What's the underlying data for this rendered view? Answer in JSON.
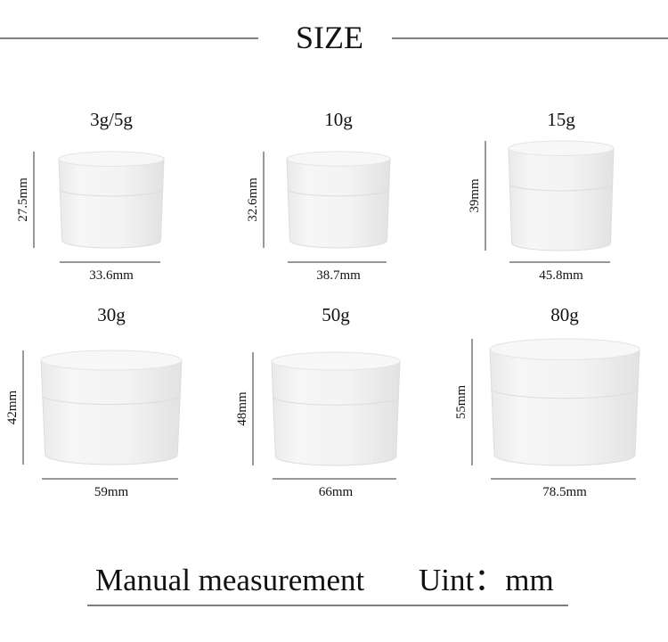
{
  "header": {
    "title": "SIZE"
  },
  "items": [
    {
      "label": "3g/5g",
      "height": "27.5mm",
      "width": "33.6mm"
    },
    {
      "label": "10g",
      "height": "32.6mm",
      "width": "38.7mm"
    },
    {
      "label": "15g",
      "height": "39mm",
      "width": "45.8mm"
    },
    {
      "label": "30g",
      "height": "42mm",
      "width": "59mm"
    },
    {
      "label": "50g",
      "height": "48mm",
      "width": "66mm"
    },
    {
      "label": "80g",
      "height": "55mm",
      "width": "78.5mm"
    }
  ],
  "footer": {
    "note": "Manual measurement",
    "unit": "Uint：mm"
  }
}
